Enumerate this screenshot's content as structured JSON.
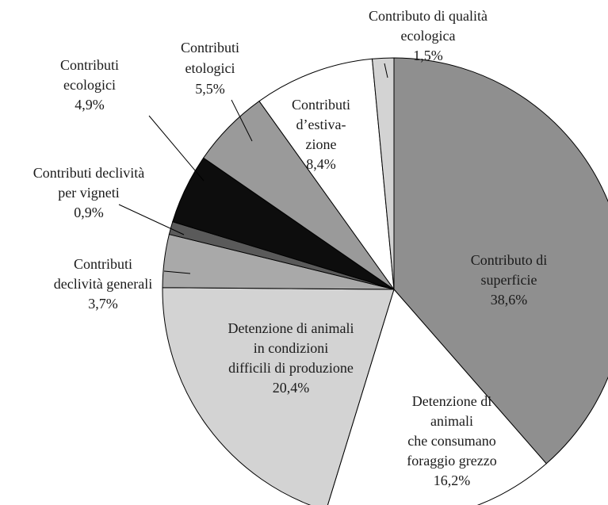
{
  "chart_data": {
    "type": "pie",
    "categories": [
      [
        "Contributo di",
        "superficie"
      ],
      [
        "Detenzione di",
        "animali",
        "che consumano",
        "foraggio grezzo"
      ],
      [
        "Detenzione di animali",
        "in condizioni",
        "difficili di produzione"
      ],
      [
        "Contributi",
        "declività generali"
      ],
      [
        "Contributi declività",
        "per vigneti"
      ],
      [
        "Contributi",
        "ecologici"
      ],
      [
        "Contributi",
        "etologici"
      ],
      [
        "Contributi",
        "d’estiva-",
        "zione"
      ],
      [
        "Contributo di qualità",
        "ecologica"
      ]
    ],
    "values": [
      38.6,
      16.2,
      20.4,
      3.7,
      0.9,
      4.9,
      5.5,
      8.4,
      1.5
    ],
    "value_labels": [
      "38,6%",
      "16,2%",
      "20,4%",
      "3,7%",
      "0,9%",
      "4,9%",
      "5,5%",
      "8,4%",
      "1,5%"
    ],
    "colors": [
      "#8f8f8f",
      "#ffffff",
      "#d3d3d3",
      "#a9a9a9",
      "#5a5a5a",
      "#0d0d0d",
      "#9a9a9a",
      "#ffffff",
      "#d3d3d3"
    ]
  }
}
